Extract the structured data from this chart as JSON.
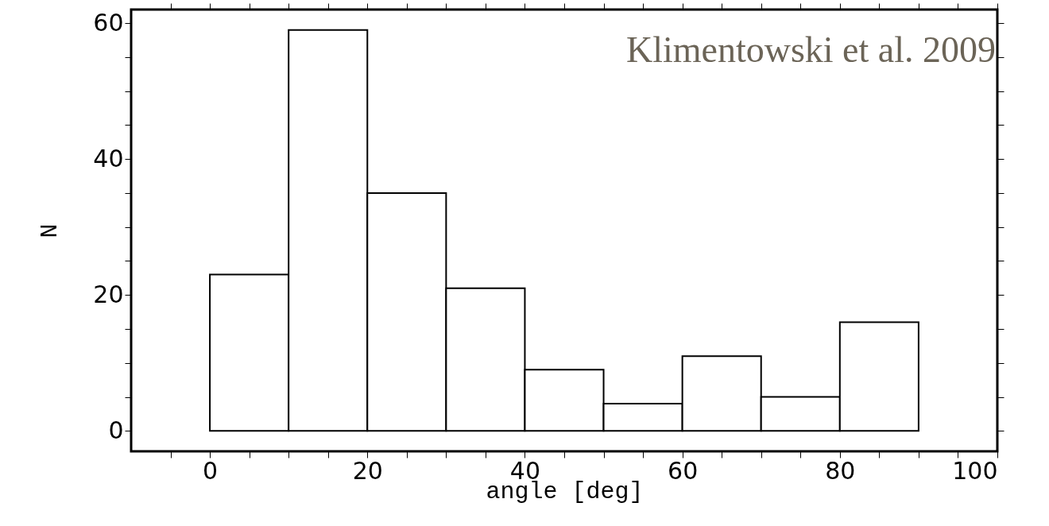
{
  "chart_data": {
    "type": "histogram",
    "bins": [
      0,
      10,
      20,
      30,
      40,
      50,
      60,
      70,
      80,
      90
    ],
    "values": [
      23,
      59,
      35,
      21,
      9,
      4,
      11,
      5,
      16
    ],
    "color": "#ffffff",
    "xlabel": "angle [deg]",
    "ylabel": "N",
    "xlim": [
      -10,
      100
    ],
    "ylim": [
      -3,
      62
    ],
    "xticks": [
      {
        "value": -5,
        "label": null
      },
      0,
      {
        "value": 5,
        "label": null
      },
      {
        "value": 10,
        "label": null
      },
      {
        "value": 15,
        "label": null
      },
      20,
      {
        "value": 25,
        "label": null
      },
      {
        "value": 30,
        "label": null
      },
      {
        "value": 35,
        "label": null
      },
      40,
      {
        "value": 45,
        "label": null
      },
      {
        "value": 50,
        "label": null
      },
      {
        "value": 55,
        "label": null
      },
      60,
      {
        "value": 65,
        "label": null
      },
      {
        "value": 70,
        "label": null
      },
      {
        "value": 75,
        "label": null
      },
      80,
      {
        "value": 85,
        "label": null
      },
      {
        "value": 90,
        "label": null
      },
      {
        "value": 95,
        "label": null
      },
      100
    ],
    "yticks": [
      0,
      {
        "value": 5,
        "label": null
      },
      {
        "value": 10,
        "label": null
      },
      {
        "value": 15,
        "label": null
      },
      20,
      {
        "value": 25,
        "label": null
      },
      {
        "value": 30,
        "label": null
      },
      {
        "value": 35,
        "label": null
      },
      40,
      {
        "value": 45,
        "label": null
      },
      {
        "value": 50,
        "label": null
      },
      {
        "value": 55,
        "label": null
      },
      60
    ],
    "annotations": [
      "Klimentowski et al. 2009"
    ]
  }
}
